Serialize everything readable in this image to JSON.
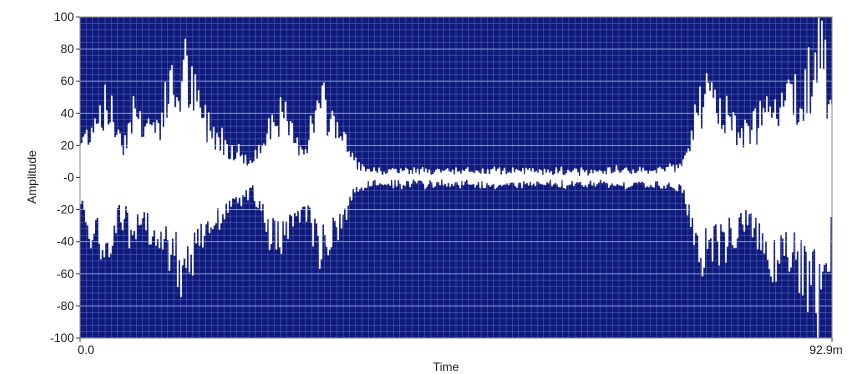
{
  "chart_data": {
    "type": "line",
    "xlabel": "Time",
    "ylabel": "Amplitude",
    "x_tick_labels": [
      "0.0",
      "92.9m"
    ],
    "x_range": [
      0,
      0.0929
    ],
    "ylim": [
      -100,
      100
    ],
    "y_ticks": [
      100,
      80,
      60,
      40,
      20,
      0,
      -20,
      -40,
      -60,
      -80,
      -100
    ],
    "y_tick_labels": [
      "100",
      "80",
      "60",
      "40",
      "20",
      "-0",
      "-20",
      "-40",
      "-60",
      "-80",
      "-100"
    ],
    "grid": true,
    "colors": {
      "plot_background": "#0f1a7a",
      "grid": "#5d70c8",
      "trace": "#ffffff"
    },
    "series": [
      {
        "envelope_x": [
          0,
          0.0019,
          0.0028,
          0.0037,
          0.0046,
          0.0056,
          0.0065,
          0.0074,
          0.0084,
          0.0093,
          0.0102,
          0.0111,
          0.0121,
          0.013,
          0.0139,
          0.0149,
          0.0158,
          0.0167,
          0.0176,
          0.0186,
          0.0195,
          0.0204,
          0.0214,
          0.0223,
          0.0232,
          0.0242,
          0.0251,
          0.026,
          0.0269,
          0.0279,
          0.0288,
          0.0297,
          0.0307,
          0.0316,
          0.0325,
          0.0334,
          0.0344,
          0.0353,
          0.0362,
          0.0372,
          0.0381,
          0.0465,
          0.0511,
          0.0557,
          0.0604,
          0.0706,
          0.0743,
          0.0752,
          0.0762,
          0.0771,
          0.078,
          0.0789,
          0.0799,
          0.0808,
          0.0817,
          0.0827,
          0.0836,
          0.0845,
          0.0855,
          0.0864,
          0.0873,
          0.0882,
          0.0892,
          0.0901,
          0.091,
          0.0919,
          0.0929
        ],
        "envelope_amplitude": [
          28,
          50,
          62,
          55,
          40,
          30,
          60,
          48,
          45,
          42,
          52,
          75,
          70,
          90,
          70,
          55,
          45,
          38,
          32,
          25,
          22,
          15,
          12,
          25,
          45,
          55,
          50,
          38,
          25,
          30,
          45,
          62,
          52,
          48,
          35,
          18,
          10,
          6,
          5,
          5,
          5,
          5,
          6,
          5,
          5,
          6,
          8,
          30,
          55,
          68,
          62,
          58,
          52,
          48,
          40,
          35,
          45,
          60,
          70,
          72,
          65,
          70,
          75,
          85,
          100,
          100,
          45
        ]
      }
    ]
  }
}
